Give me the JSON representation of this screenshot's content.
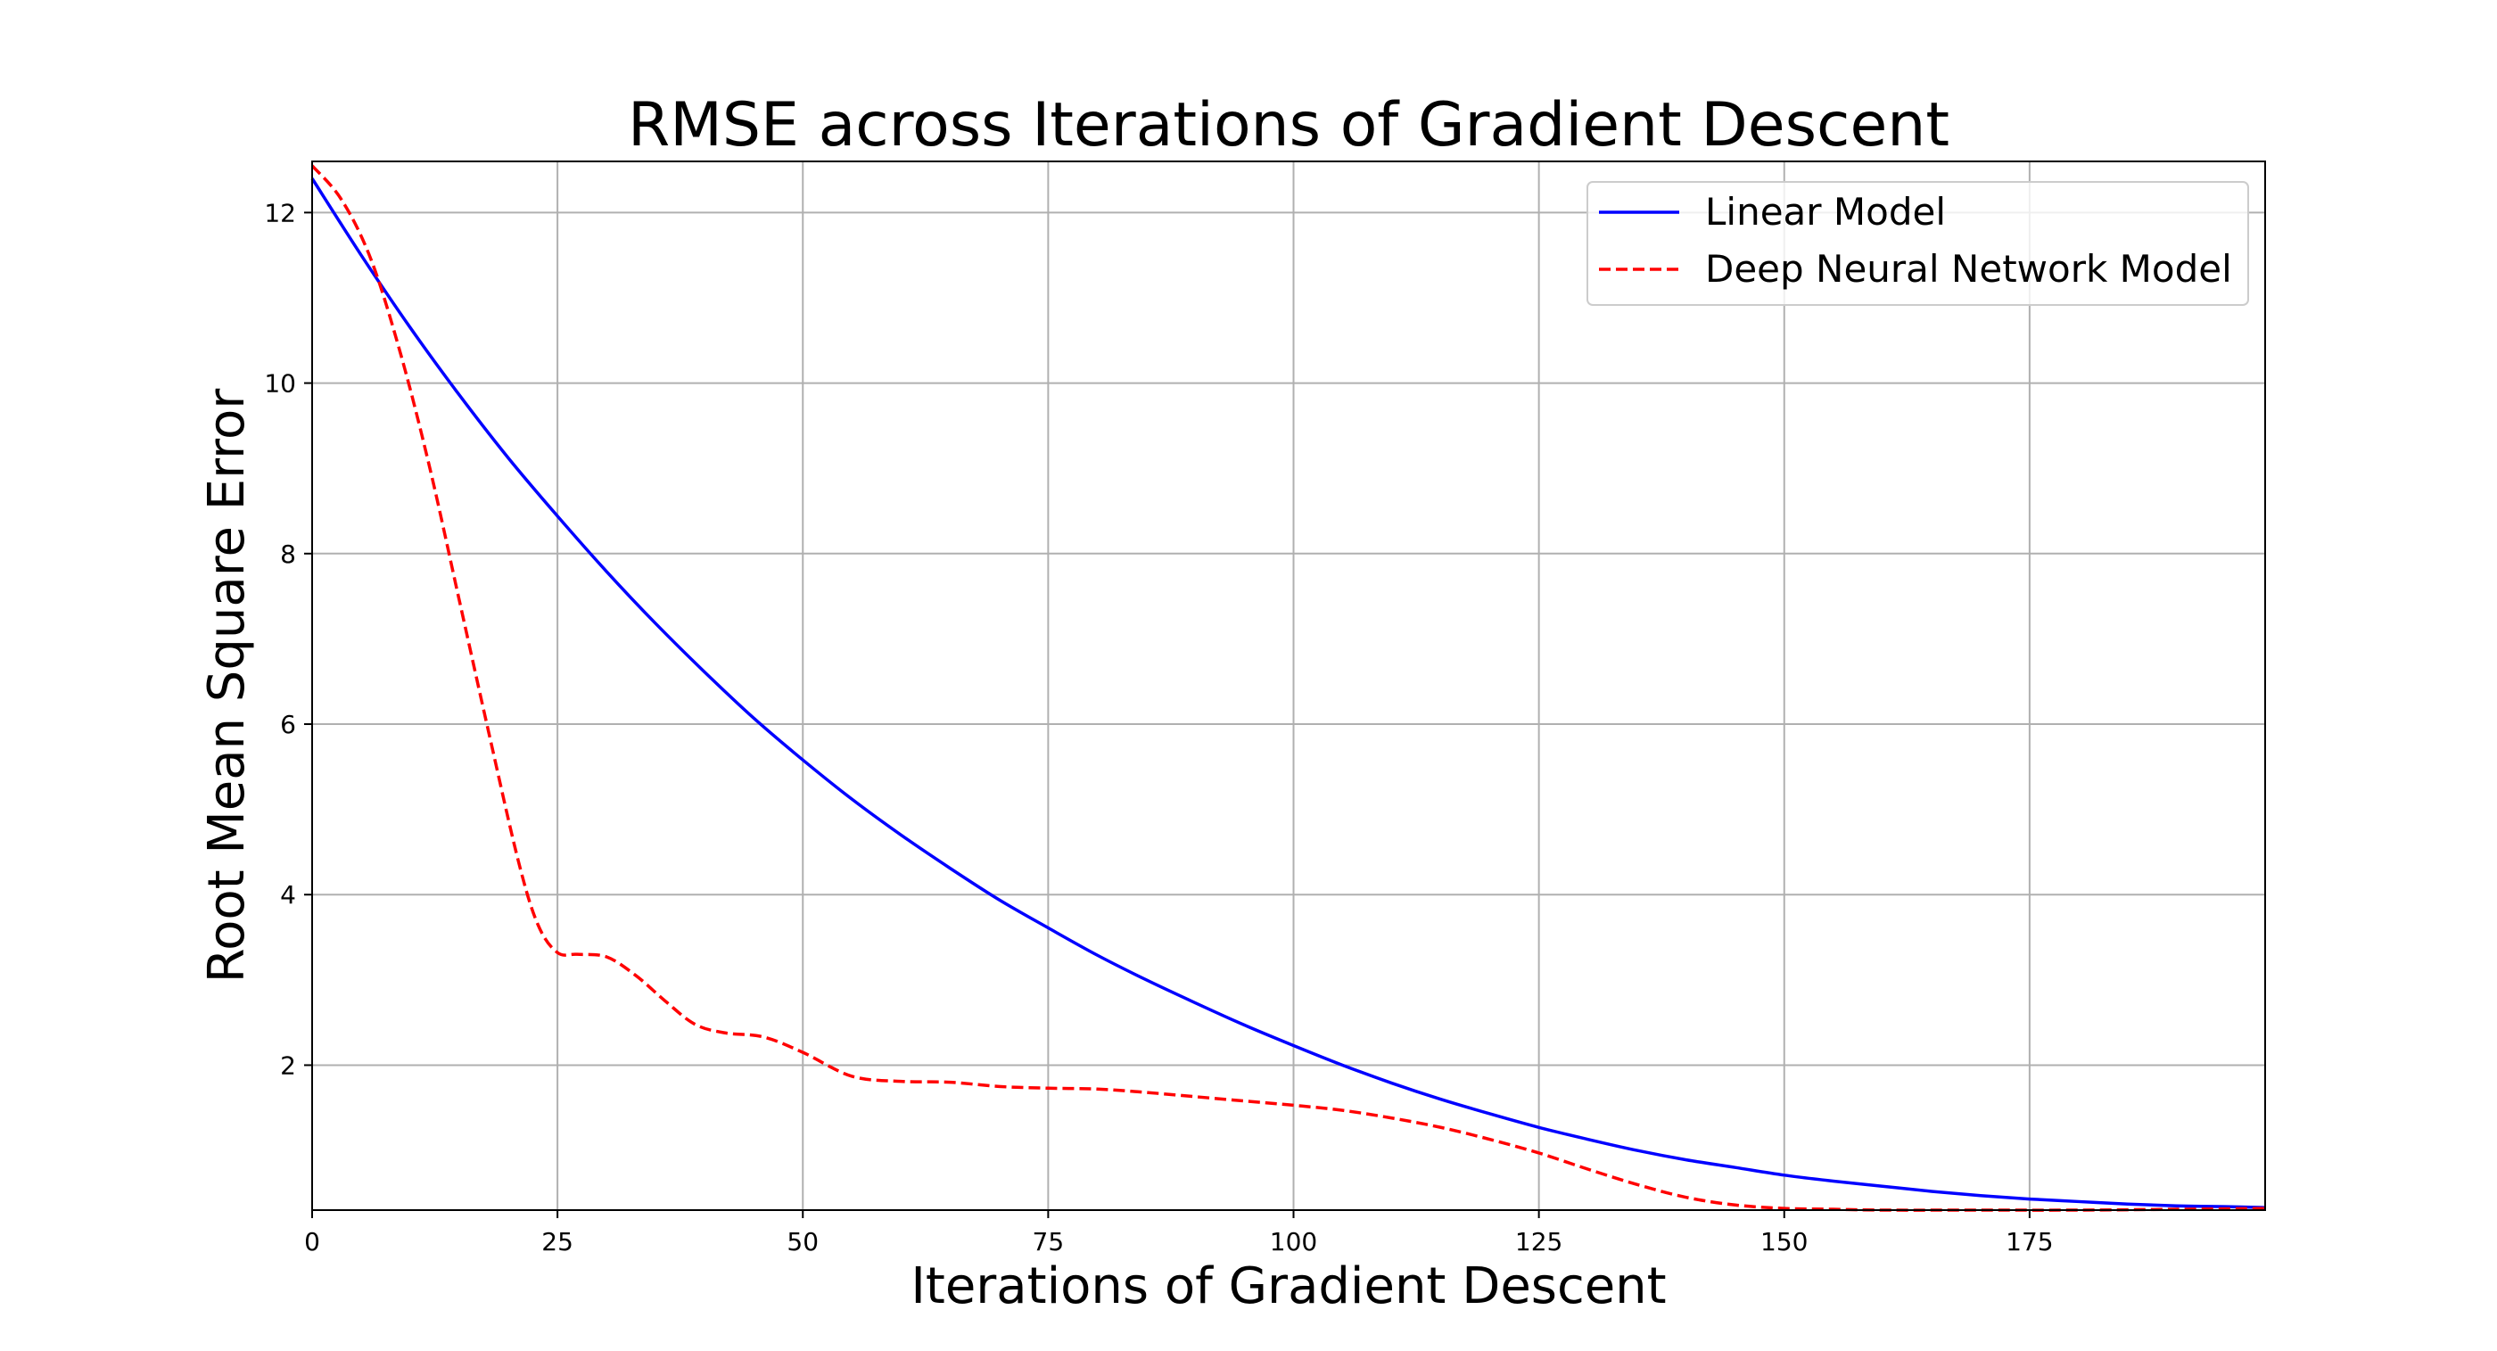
{
  "chart_data": {
    "type": "line",
    "title": "RMSE across Iterations of Gradient Descent",
    "xlabel": "Iterations of Gradient Descent",
    "ylabel": "Root Mean Square Error",
    "xlim": [
      0,
      199
    ],
    "ylim": [
      0.3,
      12.6
    ],
    "xticks": [
      0,
      25,
      50,
      75,
      100,
      125,
      150,
      175
    ],
    "yticks": [
      2,
      4,
      6,
      8,
      10,
      12
    ],
    "grid": true,
    "legend_position": "top-right",
    "series": [
      {
        "name": "Linear Model",
        "color": "#0000ff",
        "style": "solid",
        "x": [
          0,
          5,
          10,
          15,
          20,
          25,
          30,
          35,
          40,
          45,
          50,
          55,
          60,
          65,
          70,
          75,
          80,
          85,
          90,
          95,
          100,
          105,
          110,
          115,
          120,
          125,
          130,
          135,
          140,
          145,
          150,
          155,
          160,
          165,
          170,
          175,
          180,
          185,
          190,
          195,
          199
        ],
        "y": [
          12.4,
          11.5,
          10.65,
          9.86,
          9.12,
          8.44,
          7.79,
          7.18,
          6.61,
          6.07,
          5.58,
          5.12,
          4.7,
          4.31,
          3.94,
          3.61,
          3.29,
          3.0,
          2.73,
          2.47,
          2.23,
          2.0,
          1.79,
          1.6,
          1.43,
          1.27,
          1.13,
          1.0,
          0.89,
          0.8,
          0.71,
          0.64,
          0.58,
          0.52,
          0.47,
          0.43,
          0.4,
          0.37,
          0.35,
          0.34,
          0.33
        ]
      },
      {
        "name": "Deep Neural Network Model",
        "color": "#ff0000",
        "style": "dashed",
        "x": [
          0,
          3,
          6,
          9,
          12,
          15,
          18,
          21,
          23,
          25,
          27,
          30,
          33,
          36,
          39,
          42,
          46,
          50,
          55,
          60,
          65,
          70,
          75,
          80,
          85,
          90,
          95,
          100,
          105,
          110,
          115,
          120,
          125,
          130,
          135,
          140,
          145,
          150,
          155,
          160,
          170,
          180,
          190,
          199
        ],
        "y": [
          12.55,
          12.15,
          11.45,
          10.35,
          9.0,
          7.45,
          5.9,
          4.4,
          3.65,
          3.32,
          3.3,
          3.27,
          3.05,
          2.75,
          2.48,
          2.38,
          2.33,
          2.15,
          1.87,
          1.81,
          1.8,
          1.75,
          1.73,
          1.72,
          1.68,
          1.63,
          1.58,
          1.53,
          1.47,
          1.38,
          1.27,
          1.13,
          0.97,
          0.78,
          0.6,
          0.45,
          0.36,
          0.32,
          0.31,
          0.3,
          0.3,
          0.3,
          0.31,
          0.32
        ]
      }
    ]
  }
}
